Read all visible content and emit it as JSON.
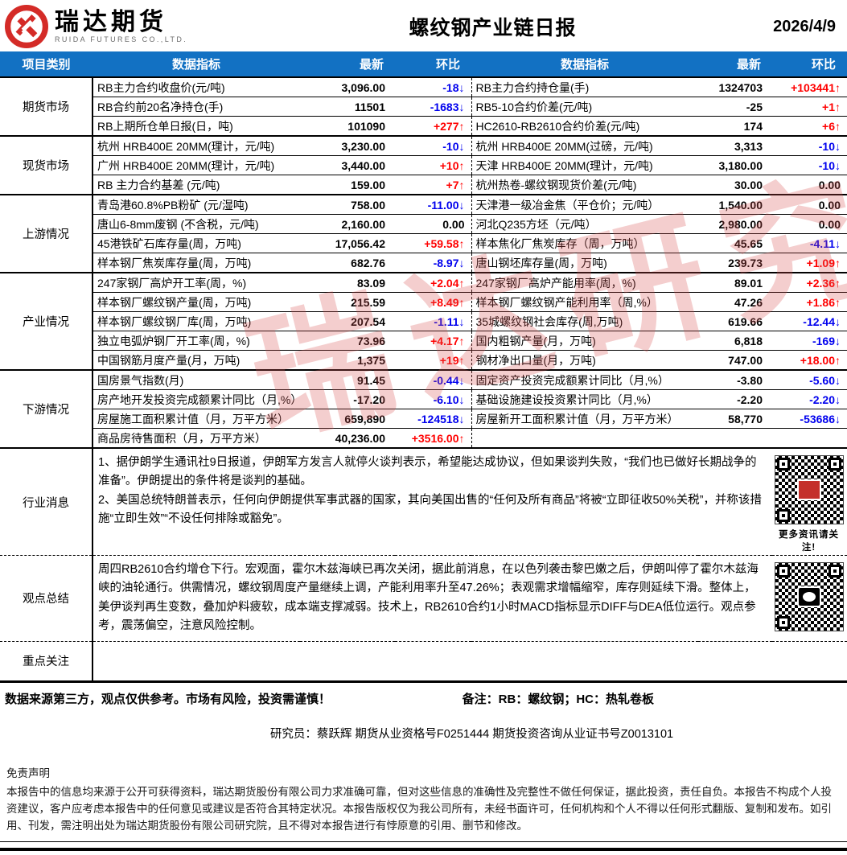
{
  "header": {
    "logo_text": "瑞达期货",
    "logo_subtext": "RUIDA FUTURES CO.,LTD.",
    "title": "螺纹钢产业链日报",
    "date": "2026/4/9"
  },
  "table_header": {
    "category": "项目类别",
    "indicator": "数据指标",
    "latest": "最新",
    "mom": "环比"
  },
  "colors": {
    "header_blue": "#1271c3",
    "up_red": "#ff0000",
    "down_blue": "#0000ee",
    "brand_red": "#d42b27",
    "watermark_red": "rgba(214,80,80,0.28)"
  },
  "watermark_text": "瑞达研究",
  "sections": [
    {
      "category": "期货市场",
      "left": [
        {
          "l": "RB主力合约收盘价(元/吨)",
          "v": "3,096.00",
          "c": "-18",
          "d": "down"
        },
        {
          "l": "RB合约前20名净持仓(手)",
          "v": "11501",
          "c": "-1683",
          "d": "down"
        },
        {
          "l": "RB上期所仓单日报(日，吨)",
          "v": "101090",
          "c": "+277",
          "d": "up"
        }
      ],
      "right": [
        {
          "l": "RB主力合约持仓量(手)",
          "v": "1324703",
          "c": "+103441",
          "d": "up"
        },
        {
          "l": "RB5-10合约价差(元/吨)",
          "v": "-25",
          "c": "+1",
          "d": "up"
        },
        {
          "l": "HC2610-RB2610合约价差(元/吨)",
          "v": "174",
          "c": "+6",
          "d": "up"
        }
      ]
    },
    {
      "category": "现货市场",
      "left": [
        {
          "l": "杭州 HRB400E 20MM(理计，元/吨)",
          "v": "3,230.00",
          "c": "-10",
          "d": "down"
        },
        {
          "l": "广州 HRB400E 20MM(理计，元/吨)",
          "v": "3,440.00",
          "c": "+10",
          "d": "up"
        },
        {
          "l": "RB 主力合约基差 (元/吨)",
          "v": "159.00",
          "c": "+7",
          "d": "up"
        }
      ],
      "right": [
        {
          "l": "杭州 HRB400E 20MM(过磅，元/吨)",
          "v": "3,313",
          "c": "-10",
          "d": "down"
        },
        {
          "l": "天津 HRB400E 20MM(理计，元/吨)",
          "v": "3,180.00",
          "c": "-10",
          "d": "down"
        },
        {
          "l": "杭州热卷-螺纹钢现货价差(元/吨)",
          "v": "30.00",
          "c": "0.00",
          "d": "flat"
        }
      ]
    },
    {
      "category": "上游情况",
      "left": [
        {
          "l": "青岛港60.8%PB粉矿 (元/湿吨)",
          "v": "758.00",
          "c": "-11.00",
          "d": "down"
        },
        {
          "l": "唐山6-8mm废钢 (不含税，元/吨)",
          "v": "2,160.00",
          "c": "0.00",
          "d": "flat"
        },
        {
          "l": "45港铁矿石库存量(周，万吨)",
          "v": "17,056.42",
          "c": "+59.58",
          "d": "up"
        },
        {
          "l": "样本钢厂焦炭库存量(周，万吨)",
          "v": "682.76",
          "c": "-8.97",
          "d": "down"
        }
      ],
      "right": [
        {
          "l": "天津港一级冶金焦（平仓价；元/吨）",
          "v": "1,540.00",
          "c": "0.00",
          "d": "flat"
        },
        {
          "l": "河北Q235方坯（元/吨）",
          "v": "2,980.00",
          "c": "0.00",
          "d": "flat"
        },
        {
          "l": "样本焦化厂焦炭库存（周，万吨）",
          "v": "45.65",
          "c": "-4.11",
          "d": "down"
        },
        {
          "l": "唐山钢坯库存量(周，万吨)",
          "v": "239.73",
          "c": "+1.09",
          "d": "up"
        }
      ]
    },
    {
      "category": "产业情况",
      "left": [
        {
          "l": "247家钢厂高炉开工率(周，%)",
          "v": "83.09",
          "c": "+2.04",
          "d": "up"
        },
        {
          "l": "样本钢厂螺纹钢产量(周，万吨)",
          "v": "215.59",
          "c": "+8.49",
          "d": "up"
        },
        {
          "l": "样本钢厂螺纹钢厂库(周，万吨)",
          "v": "207.54",
          "c": "-1.11",
          "d": "down"
        },
        {
          "l": "独立电弧炉钢厂开工率(周，%)",
          "v": "73.96",
          "c": "+4.17",
          "d": "up"
        },
        {
          "l": "中国钢筋月度产量(月，万吨)",
          "v": "1,375",
          "c": "+19",
          "d": "up"
        }
      ],
      "right": [
        {
          "l": "247家钢厂高炉产能用率(周，%)",
          "v": "89.01",
          "c": "+2.36",
          "d": "up"
        },
        {
          "l": "样本钢厂螺纹钢产能利用率（周,%）",
          "v": "47.26",
          "c": "+1.86",
          "d": "up"
        },
        {
          "l": "35城螺纹钢社会库存(周,万吨)",
          "v": "619.66",
          "c": "-12.44",
          "d": "down"
        },
        {
          "l": "国内粗钢产量(月，万吨)",
          "v": "6,818",
          "c": "-169",
          "d": "down"
        },
        {
          "l": "钢材净出口量(月，万吨)",
          "v": "747.00",
          "c": "+18.00",
          "d": "up"
        }
      ]
    },
    {
      "category": "下游情况",
      "left": [
        {
          "l": "国房景气指数(月)",
          "v": "91.45",
          "c": "-0.44",
          "d": "down"
        },
        {
          "l": "房产地开发投资完成额累计同比（月,%）",
          "v": "-17.20",
          "c": "-6.10",
          "d": "down"
        },
        {
          "l": "房屋施工面积累计值（月，万平方米）",
          "v": "659,890",
          "c": "-124518",
          "d": "down"
        },
        {
          "l": "商品房待售面积（月，万平方米）",
          "v": "40,236.00",
          "c": "+3516.00",
          "d": "up"
        }
      ],
      "right": [
        {
          "l": "固定资产投资完成额累计同比（月,%）",
          "v": "-3.80",
          "c": "-5.60",
          "d": "down"
        },
        {
          "l": "基础设施建设投资累计同比（月,%）",
          "v": "-2.20",
          "c": "-2.20",
          "d": "down"
        },
        {
          "l": "房屋新开工面积累计值（月，万平方米）",
          "v": "58,770",
          "c": "-53686",
          "d": "down"
        },
        {
          "l": "",
          "v": "",
          "c": "",
          "d": "flat"
        }
      ]
    }
  ],
  "news": {
    "category": "行业消息",
    "line1": "1、据伊朗学生通讯社9日报道，伊朗军方发言人就停火谈判表示，希望能达成协议，但如果谈判失败，“我们也已做好长期战争的准备”。伊朗提出的条件将是谈判的基础。",
    "line2": "2、美国总统特朗普表示，任何向伊朗提供军事武器的国家，其向美国出售的“任何及所有商品”将被“立即征收50%关税”，并称该措施“立即生效”“不设任何排除或豁免”。",
    "qr_caption": "更多资讯请关注!"
  },
  "view": {
    "category": "观点总结",
    "text": "周四RB2610合约增仓下行。宏观面，霍尔木兹海峡已再次关闭，据此前消息，在以色列袭击黎巴嫩之后，伊朗叫停了霍尔木兹海峡的油轮通行。供需情况，螺纹钢周度产量继续上调，产能利用率升至47.26%；表观需求增幅缩窄，库存则延续下滑。整体上，美伊谈判再生变数，叠加炉料疲软，成本端支撑减弱。技术上，RB2610合约1小时MACD指标显示DIFF与DEA低位运行。观点参考，震荡偏空，注意风险控制。"
  },
  "focus": {
    "category": "重点关注",
    "text": ""
  },
  "footer": {
    "note_left": "数据来源第三方，观点仅供参考。市场有风险，投资需谨慎！",
    "note_right": "备注：RB：螺纹钢；HC：热轧卷板",
    "researcher": "研究员：蔡跃辉    期货从业资格号F0251444      期货投资咨询从业证书号Z0013101",
    "disclaimer_title": "免责声明",
    "disclaimer_body": "本报告中的信息均来源于公开可获得资料，瑞达期货股份有限公司力求准确可靠，但对这些信息的准确性及完整性不做任何保证，据此投资，责任自负。本报告不构成个人投资建议，客户应考虑本报告中的任何意见或建议是否符合其特定状况。本报告版权仅为我公司所有，未经书面许可，任何机构和个人不得以任何形式翻版、复制和发布。如引用、刊发，需注明出处为瑞达期货股份有限公司研究院，且不得对本报告进行有悖原意的引用、删节和修改。"
  }
}
